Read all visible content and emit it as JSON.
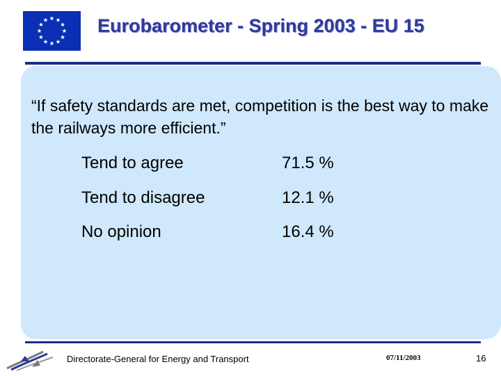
{
  "header": {
    "title": "Eurobarometer - Spring 2003 - EU 15",
    "flag_icon": "eu-flag-icon",
    "flag_color": "#0a2fb4",
    "star_color": "#ffffff"
  },
  "question": "“If safety standards are met, competition is the best way to make the railways more efficient.”",
  "results": [
    {
      "label": "Tend to agree",
      "value": "71.5 %"
    },
    {
      "label": "Tend to disagree",
      "value": "12.1 %"
    },
    {
      "label": "No opinion",
      "value": "16.4 %"
    }
  ],
  "footer": {
    "directorate": "Directorate-General for Energy and Transport",
    "date": "07/11/2003",
    "page_number": "16",
    "logo_icon": "dg-tren-logo-icon"
  },
  "colors": {
    "title": "#2f3a9e",
    "rule": "#1f2a88",
    "panel": "#cfe8fb"
  }
}
